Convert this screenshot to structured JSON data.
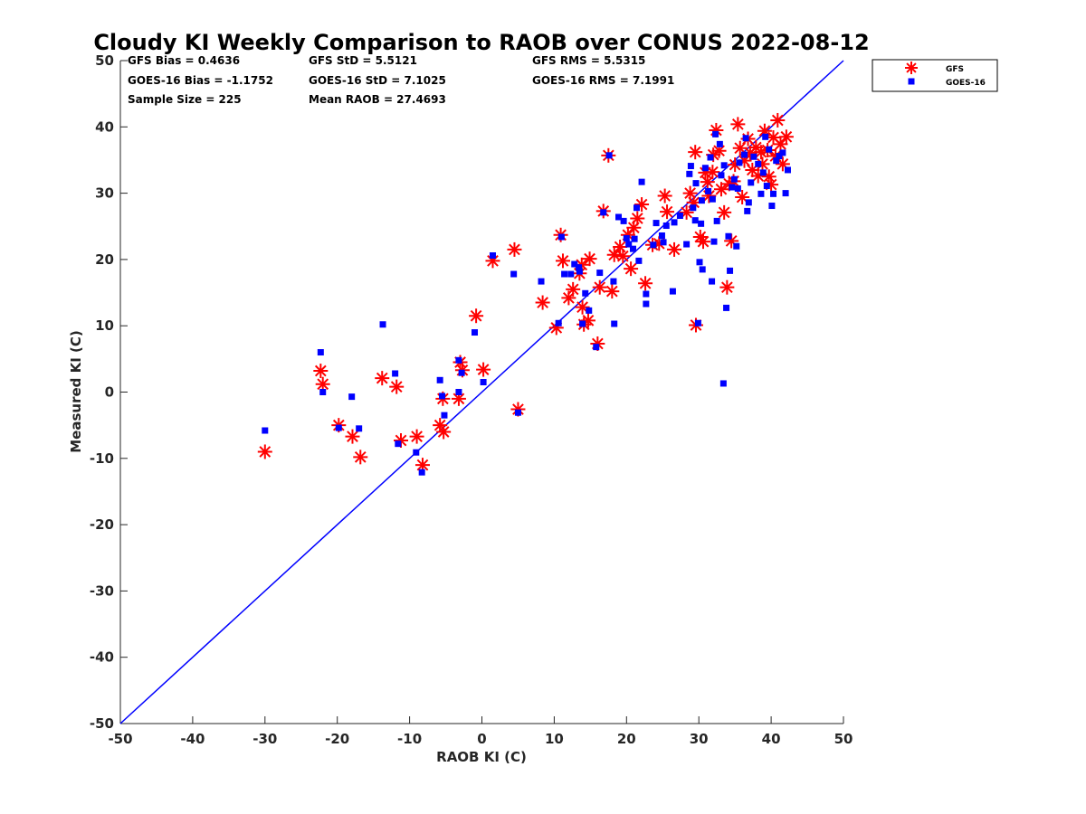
{
  "chart_data": {
    "type": "scatter",
    "title": "Cloudy KI Weekly Comparison to RAOB over CONUS 2022-08-12",
    "xlabel": "RAOB KI (C)",
    "ylabel": "Measured KI (C)",
    "xlim": [
      -50,
      50
    ],
    "ylim": [
      -50,
      50
    ],
    "xticks": [
      "-50",
      "-40",
      "-30",
      "-20",
      "-10",
      "0",
      "10",
      "20",
      "30",
      "40",
      "50"
    ],
    "yticks": [
      "50",
      "40",
      "30",
      "20",
      "10",
      "0",
      "-10",
      "-20",
      "-30",
      "-40",
      "-50"
    ],
    "grid": false,
    "legend_position": "outside-top-right",
    "reference_line": {
      "type": "one-to-one",
      "color": "#0000ff"
    },
    "stats": {
      "row1": [
        "GFS Bias = 0.4636",
        "GFS StD = 5.5121",
        "GFS RMS = 5.5315"
      ],
      "row2": [
        "GOES-16 Bias = -1.1752",
        "GOES-16 StD = 7.1025",
        "GOES-16 RMS = 7.1991"
      ],
      "row3": [
        "Sample Size = 225",
        "Mean RAOB = 27.4693"
      ]
    },
    "series": [
      {
        "name": "GFS",
        "marker": "asterisk",
        "color": "#ff0000",
        "points": [
          [
            -30,
            -9
          ],
          [
            -22.3,
            3.2
          ],
          [
            -22,
            1.2
          ],
          [
            -19.8,
            -5
          ],
          [
            -17.9,
            -6.7
          ],
          [
            -16.8,
            -9.8
          ],
          [
            -13.8,
            2.1
          ],
          [
            -11.8,
            0.8
          ],
          [
            -11.2,
            -7.3
          ],
          [
            -9,
            -6.7
          ],
          [
            -8.2,
            -11
          ],
          [
            -5.8,
            -5
          ],
          [
            -5.4,
            -1
          ],
          [
            -5.3,
            -6
          ],
          [
            -3.2,
            -1
          ],
          [
            -3,
            4.5
          ],
          [
            -2.7,
            3.3
          ],
          [
            -0.8,
            11.5
          ],
          [
            0.2,
            3.4
          ],
          [
            1.5,
            19.8
          ],
          [
            4.5,
            21.5
          ],
          [
            5,
            -2.6
          ],
          [
            8.4,
            13.5
          ],
          [
            10.3,
            9.7
          ],
          [
            10.9,
            23.7
          ],
          [
            11.2,
            19.8
          ],
          [
            12,
            14.2
          ],
          [
            12.6,
            15.5
          ],
          [
            13.5,
            17.9
          ],
          [
            13.8,
            19.2
          ],
          [
            13.9,
            12.8
          ],
          [
            14.1,
            10.2
          ],
          [
            14.7,
            10.8
          ],
          [
            14.9,
            20.1
          ],
          [
            16,
            7.3
          ],
          [
            16.3,
            15.8
          ],
          [
            16.8,
            27.3
          ],
          [
            17.5,
            35.7
          ],
          [
            18,
            15.2
          ],
          [
            18.3,
            20.7
          ],
          [
            19.1,
            21.9
          ],
          [
            19.5,
            20.5
          ],
          [
            20.2,
            23.7
          ],
          [
            20.6,
            18.6
          ],
          [
            21,
            24.8
          ],
          [
            21.5,
            26.2
          ],
          [
            22.1,
            28.3
          ],
          [
            22.6,
            16.4
          ],
          [
            23.6,
            22.2
          ],
          [
            24.5,
            22.4
          ],
          [
            25.3,
            29.6
          ],
          [
            25.6,
            27.2
          ],
          [
            26.6,
            21.5
          ],
          [
            28.3,
            27.1
          ],
          [
            28.8,
            30
          ],
          [
            29.5,
            36.2
          ],
          [
            29.6,
            10.1
          ],
          [
            30.2,
            23.4
          ],
          [
            30.6,
            22.7
          ],
          [
            31.2,
            31.7
          ],
          [
            31.4,
            29.6
          ],
          [
            31.9,
            33.2
          ],
          [
            32.4,
            39.5
          ],
          [
            32.8,
            36.4
          ],
          [
            33.5,
            27.1
          ],
          [
            33.9,
            15.8
          ],
          [
            34.2,
            31.4
          ],
          [
            34.5,
            22.8
          ],
          [
            35,
            34.3
          ],
          [
            35.4,
            40.4
          ],
          [
            35.7,
            36.8
          ],
          [
            36.3,
            34.9
          ],
          [
            36.8,
            38.2
          ],
          [
            37.4,
            33.5
          ],
          [
            37.9,
            36.9
          ],
          [
            38.2,
            32.6
          ],
          [
            38.6,
            36.2
          ],
          [
            39.1,
            39.4
          ],
          [
            39.5,
            36.5
          ],
          [
            40,
            31.3
          ],
          [
            40.3,
            38.4
          ],
          [
            40.6,
            35.6
          ],
          [
            40.9,
            41
          ],
          [
            41.3,
            37.4
          ],
          [
            42.1,
            38.5
          ],
          [
            29.3,
            28.6
          ],
          [
            30.9,
            33.1
          ],
          [
            32,
            35.8
          ],
          [
            33.1,
            30.6
          ],
          [
            34.8,
            31.8
          ],
          [
            36,
            29.4
          ],
          [
            37.1,
            36.1
          ],
          [
            38.8,
            34.4
          ],
          [
            39.7,
            32.5
          ],
          [
            41.6,
            34.4
          ]
        ]
      },
      {
        "name": "GOES-16",
        "marker": "square",
        "color": "#0000ff",
        "points": [
          [
            -30,
            -5.8
          ],
          [
            -22.3,
            6
          ],
          [
            -22,
            0
          ],
          [
            -19.8,
            -5.4
          ],
          [
            -18,
            -0.7
          ],
          [
            -17,
            -5.5
          ],
          [
            -13.7,
            10.2
          ],
          [
            -12,
            2.8
          ],
          [
            -11.6,
            -7.8
          ],
          [
            -9.1,
            -9.1
          ],
          [
            -8.3,
            -12.1
          ],
          [
            -5.8,
            1.8
          ],
          [
            -5.5,
            -0.6
          ],
          [
            -5.2,
            -3.5
          ],
          [
            -3.2,
            4.8
          ],
          [
            -3.2,
            0
          ],
          [
            -2.8,
            2.9
          ],
          [
            -1,
            9
          ],
          [
            0.2,
            1.5
          ],
          [
            1.5,
            20.6
          ],
          [
            4.4,
            17.8
          ],
          [
            5,
            -3.1
          ],
          [
            8.2,
            16.7
          ],
          [
            10.6,
            10.4
          ],
          [
            11,
            23.4
          ],
          [
            11.4,
            17.8
          ],
          [
            12.3,
            17.8
          ],
          [
            12.8,
            19.3
          ],
          [
            13.4,
            18.8
          ],
          [
            13.5,
            18.2
          ],
          [
            13.9,
            10.3
          ],
          [
            14.3,
            14.9
          ],
          [
            14.8,
            12.3
          ],
          [
            15.8,
            6.8
          ],
          [
            16.3,
            18
          ],
          [
            16.8,
            27.1
          ],
          [
            17.6,
            35.7
          ],
          [
            18.2,
            16.7
          ],
          [
            18.3,
            10.3
          ],
          [
            18.9,
            26.4
          ],
          [
            19.6,
            25.8
          ],
          [
            20,
            23.2
          ],
          [
            20.3,
            22.3
          ],
          [
            20.9,
            21.6
          ],
          [
            21.1,
            23.1
          ],
          [
            21.4,
            27.8
          ],
          [
            21.7,
            19.8
          ],
          [
            22.1,
            31.7
          ],
          [
            22.7,
            14.8
          ],
          [
            22.7,
            13.3
          ],
          [
            23.7,
            22.2
          ],
          [
            24.1,
            25.5
          ],
          [
            24.9,
            23.6
          ],
          [
            25.1,
            22.6
          ],
          [
            25.5,
            25.1
          ],
          [
            26.4,
            15.2
          ],
          [
            26.6,
            25.6
          ],
          [
            27.4,
            26.6
          ],
          [
            28.3,
            22.3
          ],
          [
            28.7,
            32.9
          ],
          [
            29.2,
            27.8
          ],
          [
            29.5,
            25.9
          ],
          [
            29.9,
            10.4
          ],
          [
            30.1,
            19.6
          ],
          [
            30.3,
            25.4
          ],
          [
            30.5,
            18.5
          ],
          [
            30.9,
            33.8
          ],
          [
            31.3,
            30.3
          ],
          [
            31.8,
            16.7
          ],
          [
            32.1,
            22.7
          ],
          [
            32.5,
            25.8
          ],
          [
            33.1,
            32.7
          ],
          [
            33.4,
            1.3
          ],
          [
            33.8,
            12.7
          ],
          [
            34.1,
            23.5
          ],
          [
            34.3,
            18.3
          ],
          [
            34.6,
            30.9
          ],
          [
            35.2,
            22
          ],
          [
            35.6,
            34.6
          ],
          [
            36.3,
            35.8
          ],
          [
            36.7,
            27.3
          ],
          [
            36.9,
            28.6
          ],
          [
            37.6,
            35.5
          ],
          [
            38.2,
            34.4
          ],
          [
            38.6,
            29.9
          ],
          [
            39.2,
            38.5
          ],
          [
            39.7,
            36.6
          ],
          [
            40.1,
            28.1
          ],
          [
            40.3,
            29.9
          ],
          [
            40.7,
            34.9
          ],
          [
            41.1,
            35.6
          ],
          [
            41.6,
            36.1
          ],
          [
            42,
            30
          ],
          [
            42.3,
            33.5
          ],
          [
            31.6,
            35.4
          ],
          [
            32.9,
            37.4
          ],
          [
            34.9,
            32.1
          ],
          [
            36.5,
            38.3
          ],
          [
            38.9,
            33.1
          ],
          [
            30.4,
            28.9
          ],
          [
            31.9,
            29.1
          ],
          [
            33.5,
            34.2
          ],
          [
            35.4,
            30.7
          ],
          [
            37.2,
            31.6
          ],
          [
            39.4,
            31.1
          ],
          [
            29.6,
            31.5
          ],
          [
            28.9,
            34.1
          ],
          [
            32.3,
            38.9
          ]
        ]
      }
    ]
  }
}
